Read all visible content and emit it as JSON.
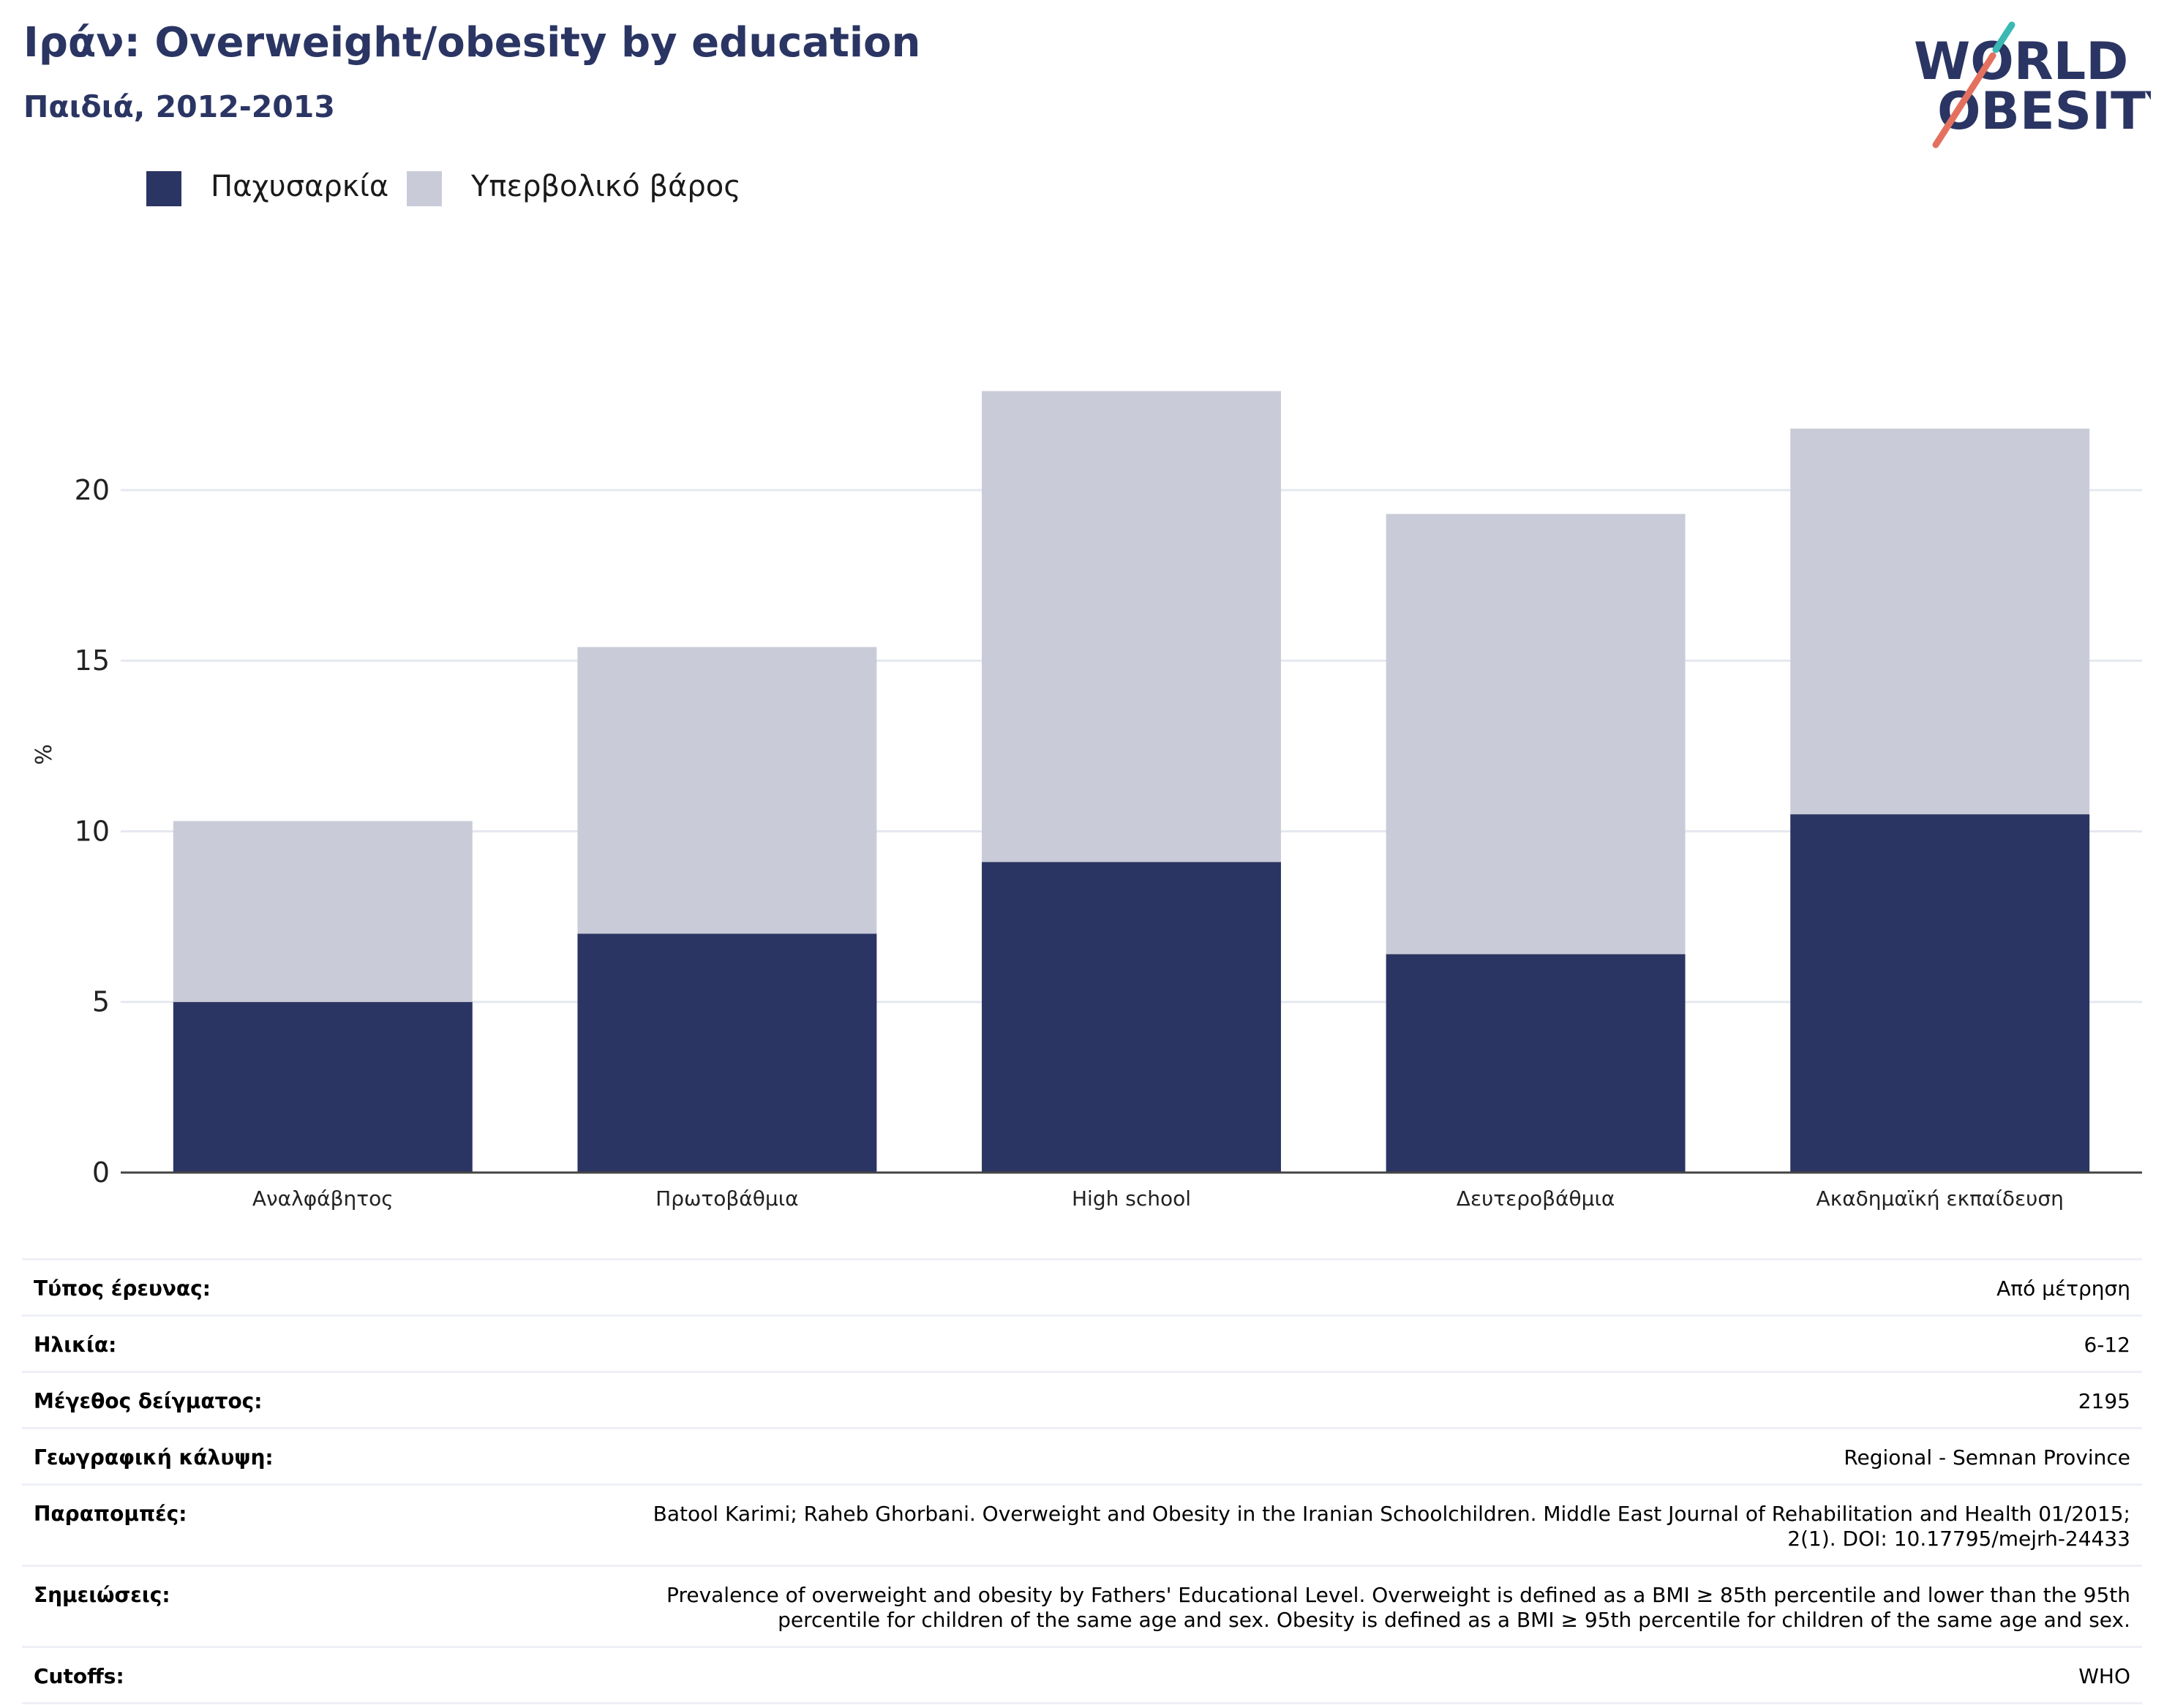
{
  "header": {
    "title": "Ιράν: Overweight/obesity by education",
    "subtitle": "Παιδιά, 2012-2013"
  },
  "logo": {
    "line1": "WORLD",
    "line2": "OBESITY",
    "colors": {
      "text": "#2a3563",
      "slash_teal": "#3bb8b4",
      "slash_red": "#e4705f"
    }
  },
  "legend": {
    "items": [
      {
        "label": "Παχυσαρκία",
        "color": "#2b3563"
      },
      {
        "label": "Υπερβολικό βάρος",
        "color": "#c9ccd8"
      }
    ]
  },
  "chart_data": {
    "type": "bar",
    "stacked": true,
    "categories": [
      "Αναλφάβητος",
      "Πρωτοβάθμια",
      "High school",
      "Δευτεροβάθμια",
      "Ακαδημαϊκή εκπαίδευση"
    ],
    "series": [
      {
        "name": "Παχυσαρκία",
        "color": "#2b3563",
        "values": [
          5.0,
          7.0,
          9.1,
          6.4,
          10.5
        ]
      },
      {
        "name": "Υπερβολικό βάρος",
        "color": "#c9ccd8",
        "values": [
          5.3,
          8.4,
          13.8,
          12.9,
          11.3
        ]
      }
    ],
    "ylabel": "%",
    "yticks": [
      0,
      5,
      10,
      15,
      20
    ],
    "ylim": [
      0,
      24.5
    ],
    "grid": true,
    "legend_position": "top-left"
  },
  "info": {
    "rows": [
      {
        "label": "Τύπος έρευνας:",
        "value": "Από μέτρηση"
      },
      {
        "label": "Ηλικία:",
        "value": "6-12"
      },
      {
        "label": "Μέγεθος δείγματος:",
        "value": "2195"
      },
      {
        "label": "Γεωγραφική κάλυψη:",
        "value": "Regional - Semnan Province"
      },
      {
        "label": "Παραπομπές:",
        "value": "Batool Karimi; Raheb Ghorbani. Overweight and Obesity in the Iranian Schoolchildren. Middle East Journal of Rehabilitation and Health 01/2015; 2(1). DOI: 10.17795/mejrh-24433"
      },
      {
        "label": "Σημειώσεις:",
        "value": "Prevalence of overweight and obesity by Fathers' Educational Level. Overweight is defined as a BMI ≥ 85th percentile and lower than the 95th percentile for children of the same age and sex. Obesity is defined as a BMI ≥ 95th percentile for children of the same age and sex."
      },
      {
        "label": "Cutoffs:",
        "value": "WHO"
      }
    ]
  }
}
